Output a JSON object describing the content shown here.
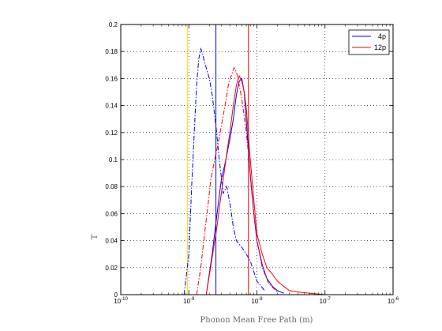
{
  "chart_data": {
    "type": "line",
    "xlabel": "Phonon Mean Free Path (m)",
    "ylabel": "T",
    "xscale": "log",
    "xlim": [
      1e-10,
      1e-06
    ],
    "ylim": [
      0,
      0.2
    ],
    "grid": true,
    "legend_position": "top-right",
    "x_ticks": [
      {
        "base": "10",
        "exp": "-10",
        "value": 1e-10
      },
      {
        "base": "10",
        "exp": "-9",
        "value": 1e-09
      },
      {
        "base": "10",
        "exp": "-8",
        "value": 1e-08
      },
      {
        "base": "10",
        "exp": "-7",
        "value": 1e-07
      },
      {
        "base": "10",
        "exp": "-6",
        "value": 1e-06
      }
    ],
    "y_ticks": [
      "0",
      "0.02",
      "0.04",
      "0.06",
      "0.08",
      "0.1",
      "0.12",
      "0.14",
      "0.16",
      "0.18",
      "0.2"
    ],
    "legend": [
      {
        "name": "4p",
        "color": "#0000ff"
      },
      {
        "name": "12p",
        "color": "#ff0000"
      }
    ],
    "vertical_lines": [
      {
        "x": 9.5e-10,
        "color": "#ffd700"
      },
      {
        "x": 2.5e-09,
        "color": "#0000ff"
      },
      {
        "x": 7.5e-09,
        "color": "#ff0000"
      }
    ],
    "series": [
      {
        "name": "4p",
        "color": "#0000ff",
        "style": "solid",
        "x": [
          1.8e-09,
          2.2e-09,
          2.6e-09,
          3e-09,
          3.5e-09,
          4e-09,
          4.5e-09,
          5e-09,
          5.5e-09,
          6e-09,
          6.5e-09,
          7e-09,
          7.5e-09,
          8e-09,
          9e-09,
          1e-08,
          1.2e-08,
          1.4e-08,
          1.7e-08,
          2e-08,
          2.5e-08
        ],
        "y": [
          0.0,
          0.03,
          0.06,
          0.085,
          0.1,
          0.115,
          0.13,
          0.148,
          0.158,
          0.16,
          0.15,
          0.128,
          0.108,
          0.088,
          0.06,
          0.04,
          0.022,
          0.012,
          0.006,
          0.003,
          0.001
        ]
      },
      {
        "name": "4p dash-dot",
        "color": "#0000ff",
        "style": "dashdot",
        "x": [
          8.5e-10,
          1e-09,
          1.1e-09,
          1.2e-09,
          1.3e-09,
          1.4e-09,
          1.5e-09,
          1.6e-09,
          1.7e-09,
          1.8e-09,
          2e-09,
          2.2e-09,
          2.5e-09,
          2.8e-09,
          3.2e-09,
          3.6e-09,
          4e-09,
          4.5e-09,
          5e-09,
          6e-09,
          7e-09,
          8e-09,
          1e-08,
          1.3e-08
        ],
        "y": [
          0.0,
          0.03,
          0.08,
          0.12,
          0.155,
          0.175,
          0.182,
          0.178,
          0.172,
          0.168,
          0.16,
          0.148,
          0.125,
          0.1,
          0.075,
          0.08,
          0.068,
          0.05,
          0.04,
          0.035,
          0.03,
          0.025,
          0.01,
          0.003
        ]
      },
      {
        "name": "12p",
        "color": "#ff0000",
        "style": "solid",
        "x": [
          1.8e-09,
          2.5e-09,
          3e-09,
          3.5e-09,
          4e-09,
          4.5e-09,
          5e-09,
          5.5e-09,
          6e-09,
          6.5e-09,
          7e-09,
          7.5e-09,
          8e-09,
          9e-09,
          1e-08,
          1.2e-08,
          1.4e-08,
          1.7e-08,
          2e-08,
          2.5e-08,
          3e-08,
          4e-08,
          6e-08,
          1e-07
        ],
        "y": [
          0.0,
          0.045,
          0.075,
          0.1,
          0.12,
          0.14,
          0.155,
          0.162,
          0.158,
          0.15,
          0.138,
          0.118,
          0.1,
          0.07,
          0.045,
          0.03,
          0.02,
          0.015,
          0.01,
          0.006,
          0.003,
          0.002,
          0.001,
          0.0
        ]
      },
      {
        "name": "12p dash-dot",
        "color": "#ff0000",
        "style": "dashdot",
        "x": [
          1.3e-09,
          1.5e-09,
          1.7e-09,
          1.9e-09,
          2.1e-09,
          2.4e-09,
          2.7e-09,
          3e-09,
          3.4e-09,
          3.8e-09,
          4.2e-09,
          4.6e-09,
          5e-09,
          5.5e-09,
          6e-09,
          7e-09,
          8e-09,
          9e-09,
          1e-08,
          1.2e-08,
          1.5e-08,
          2e-08
        ],
        "y": [
          0.0,
          0.02,
          0.045,
          0.065,
          0.085,
          0.1,
          0.112,
          0.125,
          0.14,
          0.155,
          0.162,
          0.168,
          0.165,
          0.155,
          0.145,
          0.12,
          0.09,
          0.06,
          0.04,
          0.02,
          0.008,
          0.002
        ]
      }
    ]
  }
}
